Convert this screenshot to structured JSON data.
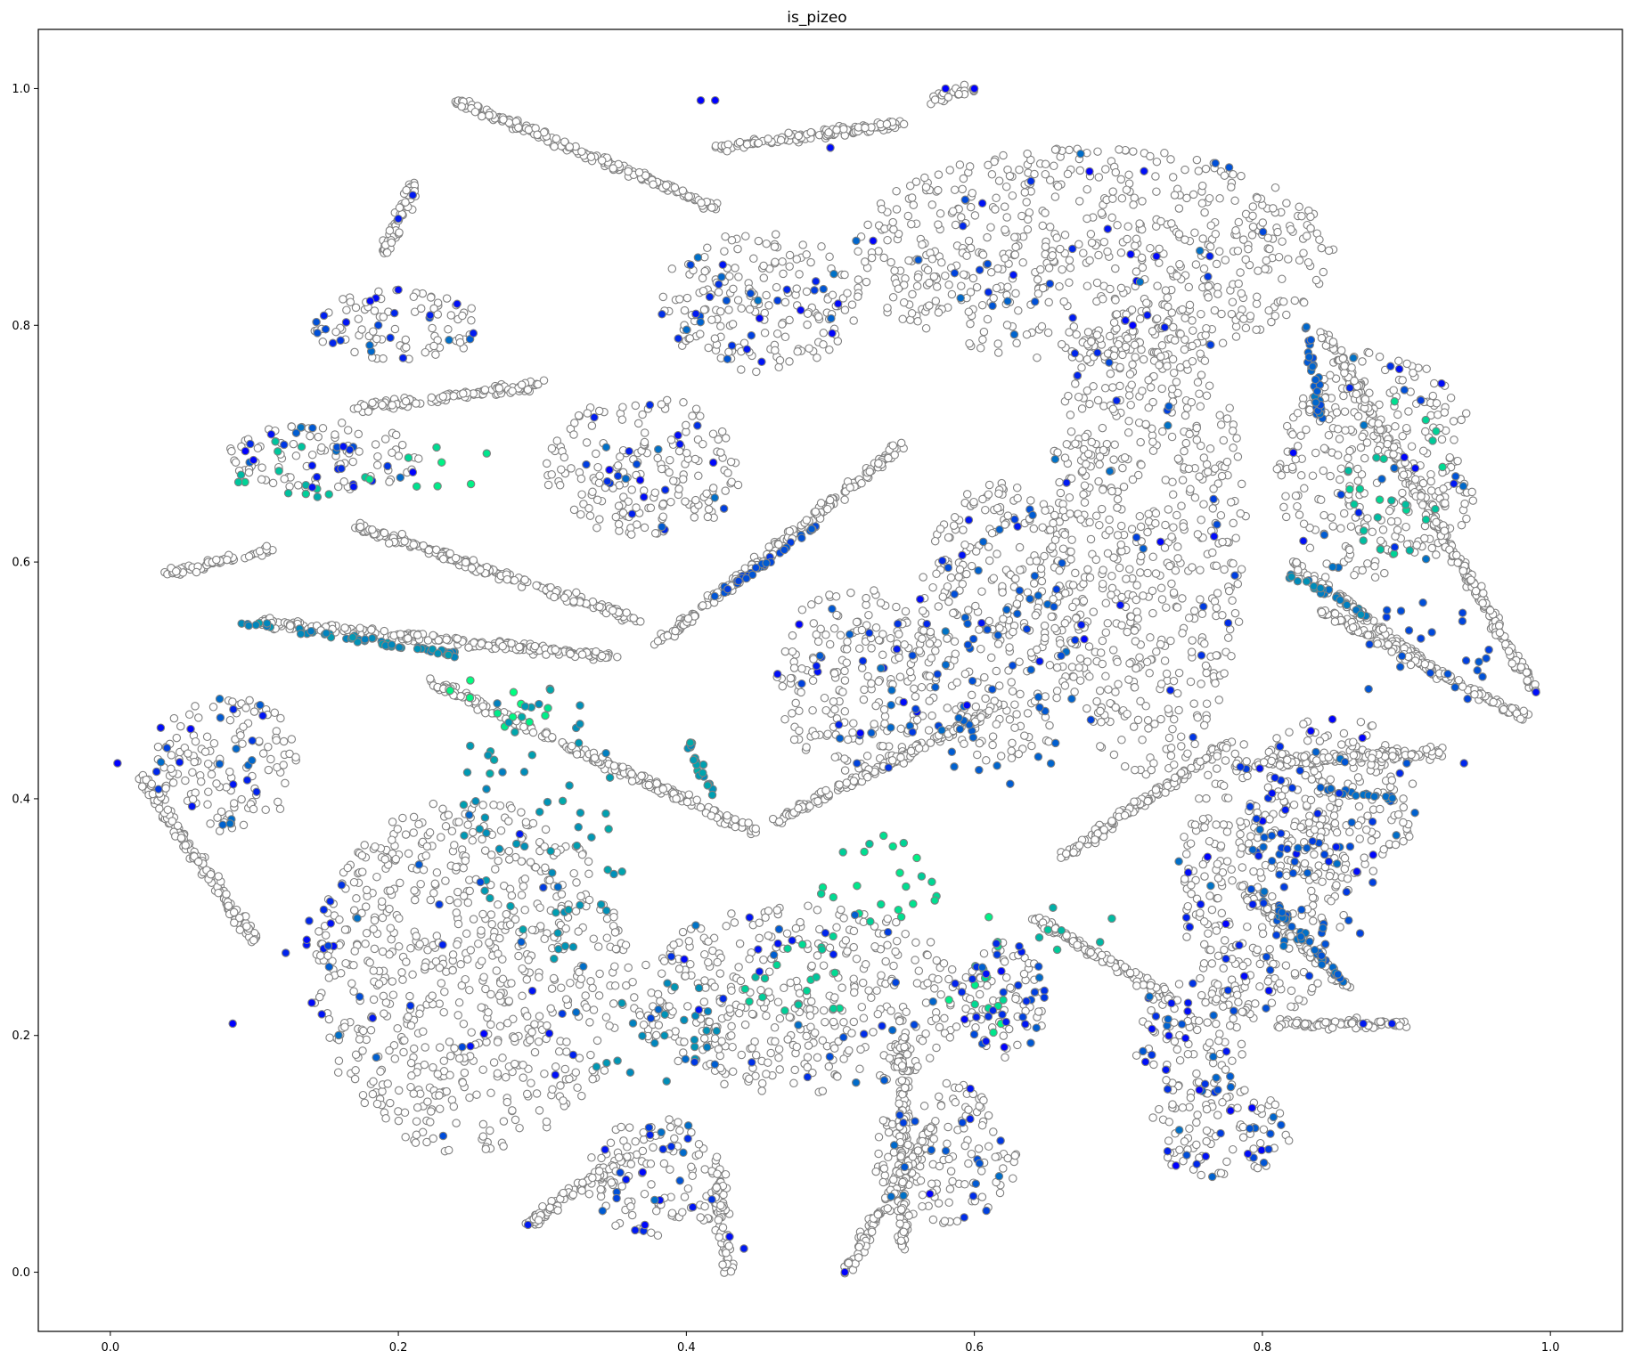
{
  "chart_data": {
    "type": "scatter",
    "title": "is_pizeo",
    "xlabel": "",
    "ylabel": "",
    "xlim": [
      -0.05,
      1.05
    ],
    "ylim": [
      -0.05,
      1.05
    ],
    "x_ticks": [
      0.0,
      0.2,
      0.4,
      0.6,
      0.8,
      1.0
    ],
    "x_tick_labels": [
      "0.0",
      "0.2",
      "0.4",
      "0.6",
      "0.8",
      "1.0"
    ],
    "y_ticks": [
      0.0,
      0.2,
      0.4,
      0.6,
      0.8,
      1.0
    ],
    "y_tick_labels": [
      "0.0",
      "0.2",
      "0.4",
      "0.6",
      "0.8",
      "1.0"
    ],
    "grid": false,
    "legend": "none",
    "colormap": "winter",
    "background_marker": {
      "face_color": "#ffffff",
      "edge_color": "#808080"
    },
    "colors": {
      "low": "#0000ff",
      "mid": "#0080c0",
      "high": "#00ff80"
    },
    "background_clusters": [
      {
        "cx": 0.25,
        "cy": 0.25,
        "rx": 0.11,
        "ry": 0.15
      },
      {
        "cx": 0.48,
        "cy": 0.23,
        "rx": 0.12,
        "ry": 0.08
      },
      {
        "cx": 0.68,
        "cy": 0.86,
        "rx": 0.17,
        "ry": 0.09
      },
      {
        "cx": 0.72,
        "cy": 0.62,
        "rx": 0.07,
        "ry": 0.2
      },
      {
        "cx": 0.62,
        "cy": 0.55,
        "rx": 0.06,
        "ry": 0.12
      },
      {
        "cx": 0.52,
        "cy": 0.5,
        "rx": 0.06,
        "ry": 0.08
      },
      {
        "cx": 0.37,
        "cy": 0.68,
        "rx": 0.07,
        "ry": 0.06
      },
      {
        "cx": 0.45,
        "cy": 0.82,
        "rx": 0.07,
        "ry": 0.06
      },
      {
        "cx": 0.88,
        "cy": 0.68,
        "rx": 0.07,
        "ry": 0.1
      },
      {
        "cx": 0.85,
        "cy": 0.4,
        "rx": 0.06,
        "ry": 0.07
      },
      {
        "cx": 0.8,
        "cy": 0.33,
        "rx": 0.06,
        "ry": 0.12
      },
      {
        "cx": 0.75,
        "cy": 0.2,
        "rx": 0.04,
        "ry": 0.05
      },
      {
        "cx": 0.77,
        "cy": 0.12,
        "rx": 0.05,
        "ry": 0.04
      },
      {
        "cx": 0.58,
        "cy": 0.1,
        "rx": 0.05,
        "ry": 0.06
      },
      {
        "cx": 0.2,
        "cy": 0.8,
        "rx": 0.06,
        "ry": 0.03
      },
      {
        "cx": 0.15,
        "cy": 0.69,
        "rx": 0.07,
        "ry": 0.03
      },
      {
        "cx": 0.08,
        "cy": 0.43,
        "rx": 0.05,
        "ry": 0.06
      },
      {
        "cx": 0.62,
        "cy": 0.23,
        "rx": 0.03,
        "ry": 0.05
      },
      {
        "cx": 0.38,
        "cy": 0.08,
        "rx": 0.05,
        "ry": 0.05
      }
    ],
    "background_strands": [
      {
        "x1": 0.17,
        "y1": 0.63,
        "x2": 0.37,
        "y2": 0.55
      },
      {
        "x1": 0.1,
        "y1": 0.55,
        "x2": 0.35,
        "y2": 0.52
      },
      {
        "x1": 0.22,
        "y1": 0.5,
        "x2": 0.45,
        "y2": 0.37
      },
      {
        "x1": 0.04,
        "y1": 0.59,
        "x2": 0.11,
        "y2": 0.61
      },
      {
        "x1": 0.17,
        "y1": 0.73,
        "x2": 0.3,
        "y2": 0.75
      },
      {
        "x1": 0.38,
        "y1": 0.53,
        "x2": 0.55,
        "y2": 0.7
      },
      {
        "x1": 0.42,
        "y1": 0.95,
        "x2": 0.55,
        "y2": 0.97
      },
      {
        "x1": 0.24,
        "y1": 0.99,
        "x2": 0.42,
        "y2": 0.9
      },
      {
        "x1": 0.46,
        "y1": 0.38,
        "x2": 0.62,
        "y2": 0.48
      },
      {
        "x1": 0.55,
        "y1": 0.2,
        "x2": 0.55,
        "y2": 0.02
      },
      {
        "x1": 0.51,
        "y1": 0.0,
        "x2": 0.57,
        "y2": 0.12
      },
      {
        "x1": 0.43,
        "y1": 0.0,
        "x2": 0.42,
        "y2": 0.09
      },
      {
        "x1": 0.29,
        "y1": 0.04,
        "x2": 0.36,
        "y2": 0.1
      },
      {
        "x1": 0.79,
        "y1": 0.32,
        "x2": 0.86,
        "y2": 0.24
      },
      {
        "x1": 0.81,
        "y1": 0.21,
        "x2": 0.9,
        "y2": 0.21
      },
      {
        "x1": 0.82,
        "y1": 0.6,
        "x2": 0.93,
        "y2": 0.5
      },
      {
        "x1": 0.84,
        "y1": 0.56,
        "x2": 0.98,
        "y2": 0.47
      },
      {
        "x1": 0.8,
        "y1": 0.43,
        "x2": 0.93,
        "y2": 0.44
      },
      {
        "x1": 0.57,
        "y1": 0.99,
        "x2": 0.6,
        "y2": 1.0
      },
      {
        "x1": 0.19,
        "y1": 0.86,
        "x2": 0.21,
        "y2": 0.92
      },
      {
        "x1": 0.64,
        "y1": 0.3,
        "x2": 0.74,
        "y2": 0.23
      },
      {
        "x1": 0.66,
        "y1": 0.35,
        "x2": 0.78,
        "y2": 0.45
      },
      {
        "x1": 0.02,
        "y1": 0.42,
        "x2": 0.1,
        "y2": 0.28
      },
      {
        "x1": 0.84,
        "y1": 0.8,
        "x2": 0.99,
        "y2": 0.49
      }
    ],
    "colored_groups": [
      {
        "cx": 0.27,
        "cy": 0.48,
        "rx": 0.05,
        "ry": 0.02,
        "value": 0.95
      },
      {
        "cx": 0.23,
        "cy": 0.68,
        "rx": 0.04,
        "ry": 0.02,
        "value": 0.9
      },
      {
        "cx": 0.13,
        "cy": 0.68,
        "rx": 0.05,
        "ry": 0.03,
        "value": 0.75
      },
      {
        "cx": 0.61,
        "cy": 0.24,
        "rx": 0.03,
        "ry": 0.05,
        "value": 0.9
      },
      {
        "cx": 0.53,
        "cy": 0.32,
        "rx": 0.05,
        "ry": 0.05,
        "value": 0.85
      },
      {
        "cx": 0.47,
        "cy": 0.25,
        "rx": 0.05,
        "ry": 0.04,
        "value": 0.8
      },
      {
        "cx": 0.38,
        "cy": 0.2,
        "rx": 0.05,
        "ry": 0.05,
        "value": 0.55
      },
      {
        "cx": 0.3,
        "cy": 0.38,
        "rx": 0.06,
        "ry": 0.12,
        "value": 0.6
      },
      {
        "cx": 0.89,
        "cy": 0.67,
        "rx": 0.04,
        "ry": 0.07,
        "value": 0.8
      },
      {
        "cx": 0.91,
        "cy": 0.52,
        "rx": 0.05,
        "ry": 0.05,
        "value": 0.3
      },
      {
        "cx": 0.66,
        "cy": 0.29,
        "rx": 0.04,
        "ry": 0.02,
        "value": 0.7
      },
      {
        "cx": 0.14,
        "cy": 0.27,
        "rx": 0.02,
        "ry": 0.06,
        "value": 0.1
      },
      {
        "cx": 0.84,
        "cy": 0.33,
        "rx": 0.05,
        "ry": 0.06,
        "value": 0.3
      },
      {
        "cx": 0.62,
        "cy": 0.5,
        "rx": 0.05,
        "ry": 0.1,
        "value": 0.35
      }
    ],
    "colored_strands": [
      {
        "x1": 0.09,
        "y1": 0.55,
        "x2": 0.25,
        "y2": 0.52,
        "value": 0.55
      },
      {
        "x1": 0.4,
        "y1": 0.45,
        "x2": 0.42,
        "y2": 0.4,
        "value": 0.6
      },
      {
        "x1": 0.8,
        "y1": 0.32,
        "x2": 0.86,
        "y2": 0.24,
        "value": 0.4
      },
      {
        "x1": 0.82,
        "y1": 0.59,
        "x2": 0.88,
        "y2": 0.55,
        "value": 0.5
      },
      {
        "x1": 0.83,
        "y1": 0.8,
        "x2": 0.84,
        "y2": 0.72,
        "value": 0.35
      },
      {
        "x1": 0.42,
        "y1": 0.57,
        "x2": 0.49,
        "y2": 0.63,
        "value": 0.3
      },
      {
        "x1": 0.84,
        "y1": 0.41,
        "x2": 0.89,
        "y2": 0.4,
        "value": 0.4
      }
    ],
    "highlight_points": [
      {
        "x": 0.005,
        "y": 0.43,
        "value": 0.0
      },
      {
        "x": 0.085,
        "y": 0.21,
        "value": 0.0
      },
      {
        "x": 0.035,
        "y": 0.46,
        "value": 0.05
      },
      {
        "x": 0.2,
        "y": 0.89,
        "value": 0.1
      },
      {
        "x": 0.21,
        "y": 0.91,
        "value": 0.1
      },
      {
        "x": 0.41,
        "y": 0.99,
        "value": 0.0
      },
      {
        "x": 0.42,
        "y": 0.99,
        "value": 0.0
      },
      {
        "x": 0.6,
        "y": 1.0,
        "value": 0.0
      },
      {
        "x": 0.58,
        "y": 1.0,
        "value": 0.0
      },
      {
        "x": 0.5,
        "y": 0.95,
        "value": 0.05
      },
      {
        "x": 0.44,
        "y": 0.02,
        "value": 0.1
      },
      {
        "x": 0.43,
        "y": 0.03,
        "value": 0.05
      },
      {
        "x": 0.51,
        "y": 0.0,
        "value": 0.0
      },
      {
        "x": 0.29,
        "y": 0.04,
        "value": 0.1
      },
      {
        "x": 0.74,
        "y": 0.09,
        "value": 0.0
      },
      {
        "x": 0.79,
        "y": 0.1,
        "value": 0.05
      },
      {
        "x": 0.2,
        "y": 0.83,
        "value": 0.05
      },
      {
        "x": 0.99,
        "y": 0.49,
        "value": 0.05
      },
      {
        "x": 0.68,
        "y": 0.93,
        "value": 0.0
      },
      {
        "x": 0.71,
        "y": 0.8,
        "value": 0.0
      },
      {
        "x": 0.87,
        "y": 0.21,
        "value": 0.1
      },
      {
        "x": 0.89,
        "y": 0.21,
        "value": 0.1
      },
      {
        "x": 0.63,
        "y": 0.63,
        "value": 0.1
      },
      {
        "x": 0.56,
        "y": 0.35,
        "value": 0.95
      },
      {
        "x": 0.25,
        "y": 0.5,
        "value": 1.0
      },
      {
        "x": 0.28,
        "y": 0.49,
        "value": 1.0
      },
      {
        "x": 0.61,
        "y": 0.3,
        "value": 0.95
      },
      {
        "x": 0.62,
        "y": 0.23,
        "value": 0.85
      },
      {
        "x": 0.18,
        "y": 0.67,
        "value": 0.9
      },
      {
        "x": 0.94,
        "y": 0.43,
        "value": 0.15
      }
    ]
  }
}
